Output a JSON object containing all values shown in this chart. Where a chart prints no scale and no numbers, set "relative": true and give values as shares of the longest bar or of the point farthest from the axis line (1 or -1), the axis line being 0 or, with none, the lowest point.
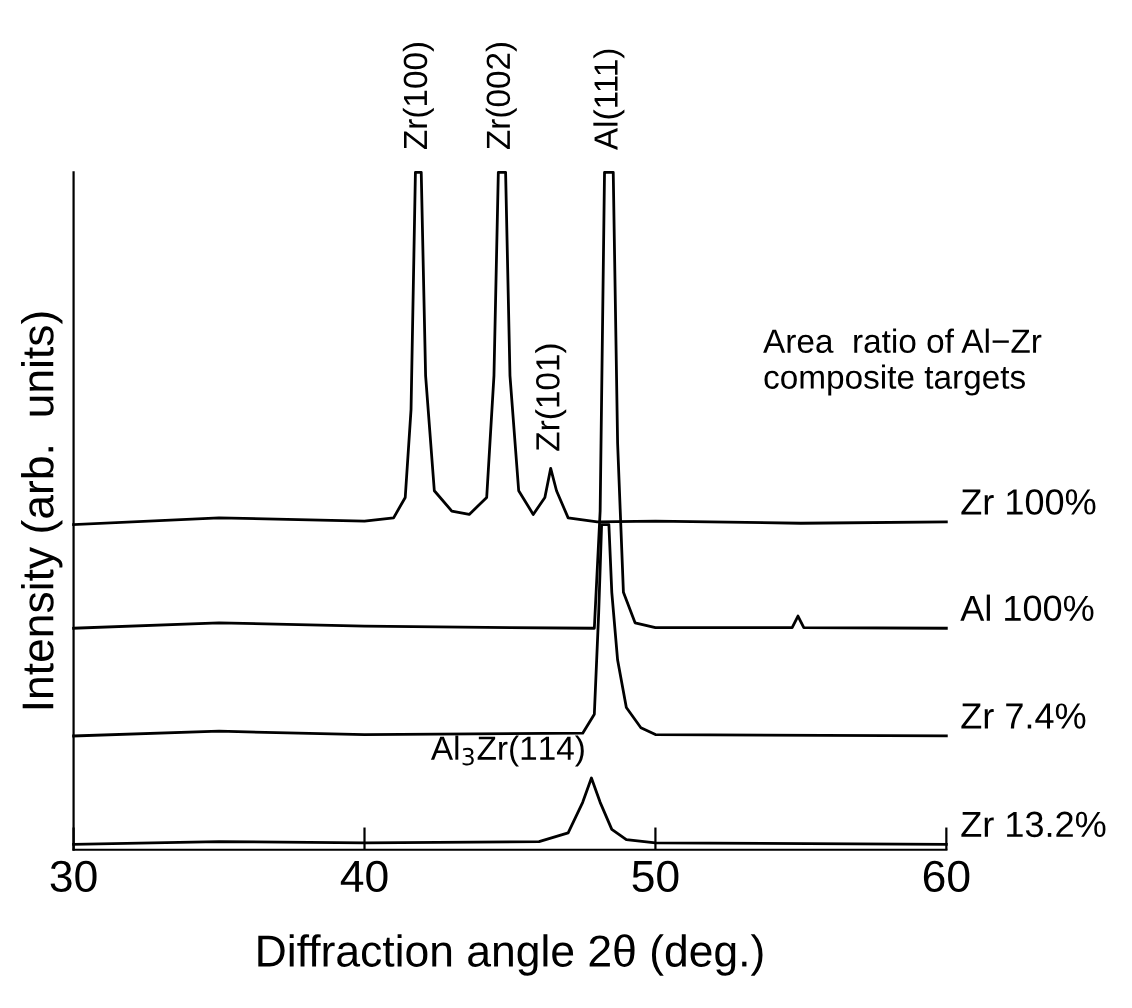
{
  "chart_data": {
    "type": "line",
    "relative": true,
    "xlabel": "Diffraction angle 2θ (deg.)",
    "ylabel": "Intensity (arb.  units)",
    "xlim": [
      30,
      60
    ],
    "xticks": [
      30,
      40,
      50,
      60
    ],
    "tick_labels": "x",
    "marker": "none",
    "line_style": "solid",
    "legend": false,
    "grid": false,
    "series": [
      {
        "name": "Zr 100%",
        "color": "#000000",
        "x": [
          30,
          35,
          40,
          41,
          41.4,
          41.6,
          41.75,
          41.95,
          42.1,
          42.4,
          43,
          43.6,
          44.2,
          44.45,
          44.6,
          44.85,
          45.0,
          45.3,
          45.8,
          46.2,
          46.4,
          46.6,
          47,
          48,
          50,
          55,
          60
        ],
        "values": [
          0.48,
          0.49,
          0.485,
          0.49,
          0.52,
          0.65,
          1.0,
          1.0,
          0.7,
          0.53,
          0.5,
          0.495,
          0.52,
          0.7,
          1.0,
          1.0,
          0.7,
          0.53,
          0.495,
          0.52,
          0.563,
          0.53,
          0.49,
          0.484,
          0.485,
          0.482,
          0.484
        ]
      },
      {
        "name": "Al 100%",
        "color": "#000000",
        "x": [
          30,
          35,
          40,
          45,
          47.9,
          48.1,
          48.25,
          48.55,
          48.7,
          48.9,
          49.3,
          50,
          54.7,
          54.9,
          55.1,
          60
        ],
        "values": [
          0.327,
          0.335,
          0.33,
          0.328,
          0.327,
          0.5,
          1.0,
          1.0,
          0.6,
          0.38,
          0.335,
          0.328,
          0.328,
          0.345,
          0.328,
          0.327
        ]
      },
      {
        "name": "Zr 7.4%",
        "color": "#000000",
        "x": [
          30,
          35,
          40,
          47.5,
          47.9,
          48.05,
          48.15,
          48.4,
          48.5,
          48.7,
          49,
          49.5,
          50,
          60
        ],
        "values": [
          0.168,
          0.175,
          0.17,
          0.172,
          0.2,
          0.35,
          0.48,
          0.48,
          0.38,
          0.28,
          0.21,
          0.18,
          0.17,
          0.168
        ]
      },
      {
        "name": "Zr 13.2%",
        "color": "#000000",
        "x": [
          30,
          35,
          40,
          46,
          47,
          47.5,
          47.8,
          48.1,
          48.5,
          49,
          50,
          60
        ],
        "values": [
          0.008,
          0.012,
          0.01,
          0.012,
          0.025,
          0.07,
          0.106,
          0.07,
          0.03,
          0.015,
          0.01,
          0.008
        ]
      }
    ],
    "annotations": [
      {
        "text": "Zr(100)",
        "x": 41.85,
        "y": 1.0
      },
      {
        "text": "Zr(002)",
        "x": 44.7,
        "y": 1.0
      },
      {
        "text": "Al(111)",
        "x": 48.4,
        "y": 1.0
      },
      {
        "text": "Zr(101)",
        "x": 46.4,
        "y": 0.563
      },
      {
        "text": "Al$_{3}$Zr(114)",
        "x": 47.8,
        "y": 0.106
      },
      "Area  ratio of Al−Zr\ncomposite targets"
    ]
  }
}
